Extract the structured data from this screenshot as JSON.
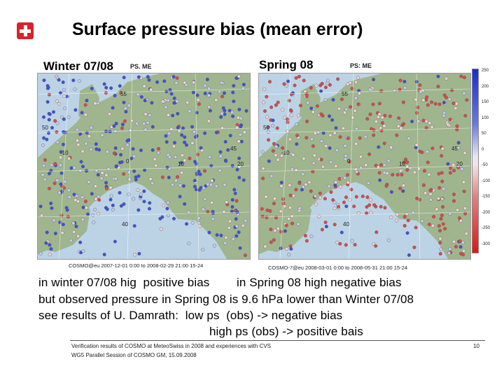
{
  "slide": {
    "title": "Surface pressure bias (mean error)",
    "winter_label": "Winter 07/08",
    "spring_label": "Spring 08",
    "left_map": {
      "tag": "PS. ME",
      "caption": "COSMO@eu 2007-12-01 0:00 to 2008-02-29 21:00 15-24",
      "grid_labels": [
        "55",
        "50",
        "45",
        "40",
        "-10",
        "0",
        "10",
        "20"
      ]
    },
    "right_map": {
      "tag": "PS: ME",
      "caption": "COSMO-7@eu 2008-03-01 0:00 to 2008-05-31 21:00 15-24",
      "grid_labels": [
        "55",
        "50",
        "45",
        "40",
        "-10",
        "0",
        "10",
        "20"
      ]
    },
    "colorbar": {
      "labels": [
        "250",
        "200",
        "150",
        "100",
        "50",
        "0",
        "-50",
        "-100",
        "-150",
        "-200",
        "-250",
        "-300"
      ],
      "top_color": "#1a2bd6",
      "bottom_color": "#e01515"
    },
    "text_lines": [
      "in winter 07/08 hig  positive bias        in Spring 08 high negative bias",
      "but observed pressure in Spring 08 is 9.6 hPa lower than Winter 07/08",
      "see results of U. Damrath:  low ps  (obs) -> negative bias",
      "high ps (obs) -> positive bais"
    ],
    "footer": {
      "line1": "Verification results of COSMO at MeteoSwiss in 2008 and experiences with CVS",
      "line2": "WG5 Parallel Session of COSMO GM, 15.09.2008",
      "page": "10"
    },
    "colors": {
      "logo_red": "#d8232a",
      "sea": "#bcd3e6",
      "land": "#9fb58e",
      "positive_bias": "#3f51d8",
      "negative_bias": "#d84a4a"
    }
  }
}
